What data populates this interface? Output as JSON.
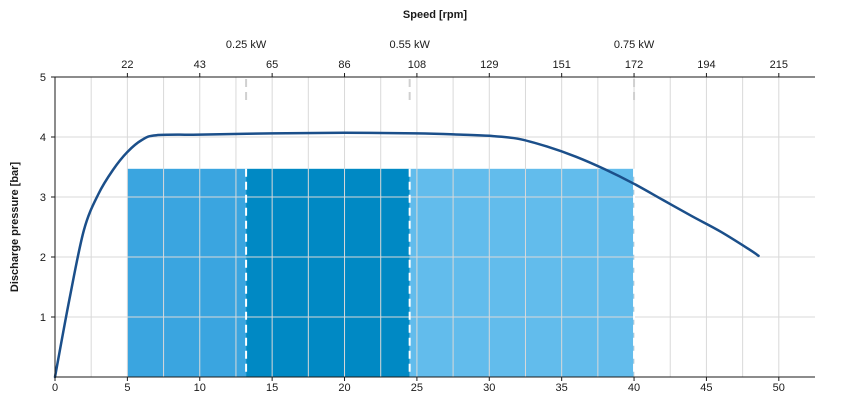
{
  "chart_data": {
    "type": "area",
    "ylabel": "Discharge pressure [bar]",
    "x2label": "Speed [rpm]",
    "xlim": [
      0,
      52.5
    ],
    "ylim": [
      0,
      5
    ],
    "x_ticks": [
      "0",
      "5",
      "10",
      "15",
      "20",
      "25",
      "30",
      "35",
      "40",
      "45",
      "50",
      "5"
    ],
    "y_ticks": [
      "1",
      "2",
      "3",
      "4",
      "5"
    ],
    "top_ticks": [
      {
        "x": 5,
        "label": "22"
      },
      {
        "x": 10,
        "label": "43"
      },
      {
        "x": 15,
        "label": "65"
      },
      {
        "x": 20,
        "label": "86"
      },
      {
        "x": 25,
        "label": "108"
      },
      {
        "x": 30,
        "label": "129"
      },
      {
        "x": 35,
        "label": "151"
      },
      {
        "x": 40,
        "label": "172"
      },
      {
        "x": 45,
        "label": "194"
      },
      {
        "x": 50,
        "label": "215"
      }
    ],
    "power_marks": [
      {
        "x": 13.2,
        "label": "0.25 kW"
      },
      {
        "x": 24.5,
        "label": "0.55 kW"
      },
      {
        "x": 40,
        "label": "0.75 kW"
      }
    ],
    "bands": [
      {
        "x0": 5,
        "x1": 13.2,
        "y": 3.47,
        "color": "#3aa5e0"
      },
      {
        "x0": 13.2,
        "x1": 24.5,
        "y": 3.47,
        "color": "#0089c4"
      },
      {
        "x0": 24.5,
        "x1": 40,
        "y": 3.47,
        "color": "#62bcec"
      }
    ],
    "series": [
      {
        "color": "#1b4f8a",
        "x": [
          0,
          1,
          2,
          3,
          4,
          5,
          6,
          7,
          10,
          15,
          20,
          25,
          28,
          30,
          32,
          34,
          36,
          38,
          40,
          42,
          44,
          46,
          48,
          48.6
        ],
        "y": [
          0,
          1.3,
          2.45,
          3.05,
          3.45,
          3.75,
          3.95,
          4.03,
          4.04,
          4.06,
          4.07,
          4.06,
          4.04,
          4.02,
          3.97,
          3.84,
          3.67,
          3.46,
          3.22,
          2.95,
          2.68,
          2.42,
          2.12,
          2.02
        ]
      }
    ],
    "grid": true
  }
}
